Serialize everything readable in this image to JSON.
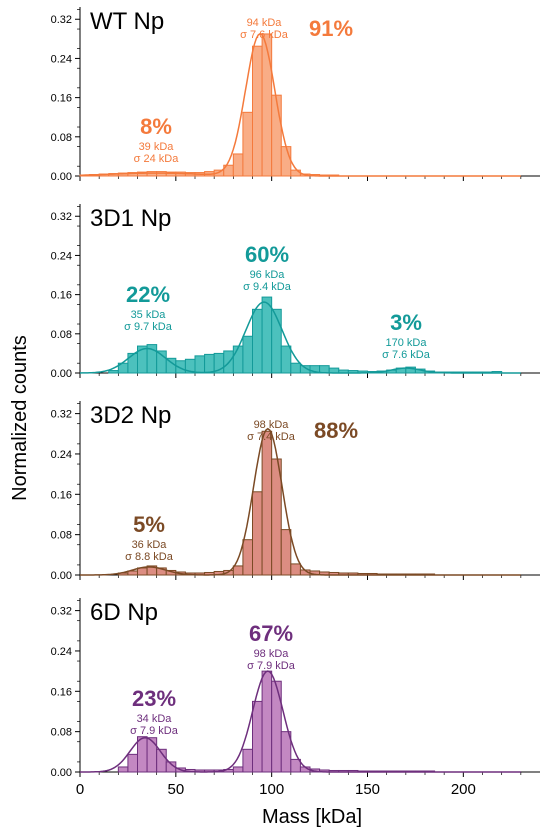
{
  "figure": {
    "ylabel": "Normalized counts",
    "xlabel": "Mass [kDa]"
  },
  "chart_data": [
    {
      "type": "bar",
      "title": "WT Np",
      "color": "#f47a3c",
      "fill": "#f9ad86",
      "xlim": [
        0,
        240
      ],
      "ylim": [
        0,
        0.345
      ],
      "yticks": [
        "0.00",
        "0.08",
        "0.16",
        "0.24",
        "0.32"
      ],
      "bin_width": 5,
      "bins": [
        [
          0,
          0.002
        ],
        [
          5,
          0.003
        ],
        [
          10,
          0.004
        ],
        [
          15,
          0.005
        ],
        [
          20,
          0.006
        ],
        [
          25,
          0.007
        ],
        [
          30,
          0.008
        ],
        [
          35,
          0.009
        ],
        [
          40,
          0.009
        ],
        [
          45,
          0.008
        ],
        [
          50,
          0.008
        ],
        [
          55,
          0.007
        ],
        [
          60,
          0.007
        ],
        [
          65,
          0.009
        ],
        [
          70,
          0.012
        ],
        [
          75,
          0.022
        ],
        [
          80,
          0.045
        ],
        [
          85,
          0.13
        ],
        [
          90,
          0.265
        ],
        [
          95,
          0.29
        ],
        [
          100,
          0.165
        ],
        [
          105,
          0.06
        ],
        [
          110,
          0.012
        ],
        [
          115,
          0.004
        ],
        [
          120,
          0.003
        ],
        [
          125,
          0.002
        ],
        [
          130,
          0.002
        ]
      ],
      "peaks": [
        {
          "percent": "8%",
          "mass": "39 kDa",
          "sigma": "σ 24 kDa",
          "mu": 39,
          "sd": 24,
          "amp": 0.006
        },
        {
          "percent": "91%",
          "mass": "94 kDa",
          "sigma": "σ 7.6 kDa",
          "mu": 94,
          "sd": 7.6,
          "amp": 0.29
        }
      ]
    },
    {
      "type": "bar",
      "title": "3D1 Np",
      "color": "#139a99",
      "fill": "#4cc1bd",
      "xlim": [
        0,
        240
      ],
      "ylim": [
        0,
        0.345
      ],
      "yticks": [
        "0.00",
        "0.08",
        "0.16",
        "0.24",
        "0.32"
      ],
      "bin_width": 5,
      "bins": [
        [
          15,
          0.005
        ],
        [
          20,
          0.02
        ],
        [
          25,
          0.04
        ],
        [
          30,
          0.055
        ],
        [
          35,
          0.058
        ],
        [
          40,
          0.045
        ],
        [
          45,
          0.03
        ],
        [
          50,
          0.025
        ],
        [
          55,
          0.028
        ],
        [
          60,
          0.035
        ],
        [
          65,
          0.038
        ],
        [
          70,
          0.04
        ],
        [
          75,
          0.045
        ],
        [
          80,
          0.055
        ],
        [
          85,
          0.075
        ],
        [
          90,
          0.13
        ],
        [
          95,
          0.155
        ],
        [
          100,
          0.13
        ],
        [
          105,
          0.055
        ],
        [
          110,
          0.02
        ],
        [
          115,
          0.015
        ],
        [
          120,
          0.015
        ],
        [
          125,
          0.015
        ],
        [
          130,
          0.01
        ],
        [
          135,
          0.006
        ],
        [
          140,
          0.005
        ],
        [
          145,
          0.004
        ],
        [
          150,
          0.003
        ],
        [
          155,
          0.004
        ],
        [
          160,
          0.006
        ],
        [
          165,
          0.01
        ],
        [
          170,
          0.012
        ],
        [
          175,
          0.008
        ],
        [
          180,
          0.004
        ],
        [
          185,
          0.002
        ],
        [
          190,
          0.002
        ],
        [
          195,
          0.002
        ],
        [
          200,
          0.002
        ],
        [
          205,
          0.002
        ],
        [
          210,
          0.002
        ],
        [
          215,
          0.003
        ]
      ],
      "peaks": [
        {
          "percent": "22%",
          "mass": "35 kDa",
          "sigma": "σ 9.7 kDa",
          "mu": 35,
          "sd": 9.7,
          "amp": 0.05
        },
        {
          "percent": "60%",
          "mass": "96 kDa",
          "sigma": "σ 9.4 kDa",
          "mu": 96,
          "sd": 9.4,
          "amp": 0.145
        },
        {
          "percent": "3%",
          "mass": "170 kDa",
          "sigma": "σ 7.6 kDa",
          "mu": 170,
          "sd": 7.6,
          "amp": 0.01
        }
      ]
    },
    {
      "type": "bar",
      "title": "3D2 Np",
      "color": "#7b4a25",
      "fill": "#dc8d82",
      "xlim": [
        0,
        240
      ],
      "ylim": [
        0,
        0.345
      ],
      "yticks": [
        "0.00",
        "0.08",
        "0.16",
        "0.24",
        "0.32"
      ],
      "bin_width": 5,
      "bins": [
        [
          20,
          0.004
        ],
        [
          25,
          0.008
        ],
        [
          30,
          0.014
        ],
        [
          35,
          0.018
        ],
        [
          40,
          0.014
        ],
        [
          45,
          0.009
        ],
        [
          50,
          0.006
        ],
        [
          55,
          0.004
        ],
        [
          60,
          0.004
        ],
        [
          65,
          0.005
        ],
        [
          70,
          0.007
        ],
        [
          75,
          0.009
        ],
        [
          80,
          0.018
        ],
        [
          85,
          0.07
        ],
        [
          90,
          0.165
        ],
        [
          95,
          0.285
        ],
        [
          100,
          0.23
        ],
        [
          105,
          0.09
        ],
        [
          110,
          0.022
        ],
        [
          115,
          0.01
        ],
        [
          120,
          0.008
        ],
        [
          125,
          0.006
        ],
        [
          130,
          0.005
        ],
        [
          135,
          0.004
        ],
        [
          140,
          0.004
        ],
        [
          145,
          0.003
        ],
        [
          150,
          0.003
        ],
        [
          155,
          0.002
        ],
        [
          160,
          0.002
        ],
        [
          165,
          0.002
        ],
        [
          170,
          0.002
        ],
        [
          175,
          0.002
        ],
        [
          180,
          0.002
        ]
      ],
      "peaks": [
        {
          "percent": "5%",
          "mass": "36 kDa",
          "sigma": "σ 8.8 kDa",
          "mu": 36,
          "sd": 8.8,
          "amp": 0.016
        },
        {
          "percent": "88%",
          "mass": "98 kDa",
          "sigma": "σ 7.4 kDa",
          "mu": 98,
          "sd": 7.4,
          "amp": 0.29
        }
      ]
    },
    {
      "type": "bar",
      "title": "6D Np",
      "color": "#6e2f7d",
      "fill": "#c388c2",
      "xlim": [
        0,
        240
      ],
      "ylim": [
        0,
        0.345
      ],
      "yticks": [
        "0.00",
        "0.08",
        "0.16",
        "0.24",
        "0.32"
      ],
      "bin_width": 5,
      "bins": [
        [
          20,
          0.01
        ],
        [
          25,
          0.035
        ],
        [
          30,
          0.07
        ],
        [
          35,
          0.068
        ],
        [
          40,
          0.045
        ],
        [
          45,
          0.02
        ],
        [
          50,
          0.008
        ],
        [
          55,
          0.005
        ],
        [
          60,
          0.004
        ],
        [
          65,
          0.004
        ],
        [
          70,
          0.004
        ],
        [
          75,
          0.005
        ],
        [
          80,
          0.01
        ],
        [
          85,
          0.045
        ],
        [
          90,
          0.14
        ],
        [
          95,
          0.2
        ],
        [
          100,
          0.18
        ],
        [
          105,
          0.08
        ],
        [
          110,
          0.025
        ],
        [
          115,
          0.01
        ],
        [
          120,
          0.006
        ],
        [
          125,
          0.004
        ],
        [
          130,
          0.003
        ],
        [
          135,
          0.003
        ],
        [
          140,
          0.003
        ],
        [
          145,
          0.002
        ],
        [
          150,
          0.002
        ],
        [
          155,
          0.002
        ],
        [
          160,
          0.002
        ],
        [
          165,
          0.002
        ],
        [
          170,
          0.002
        ],
        [
          175,
          0.002
        ],
        [
          180,
          0.002
        ]
      ],
      "peaks": [
        {
          "percent": "23%",
          "mass": "34 kDa",
          "sigma": "σ 7.9 kDa",
          "mu": 34,
          "sd": 7.9,
          "amp": 0.068
        },
        {
          "percent": "67%",
          "mass": "98 kDa",
          "sigma": "σ 7.9 kDa",
          "mu": 98,
          "sd": 7.9,
          "amp": 0.2
        }
      ]
    }
  ],
  "xaxis": {
    "ticks": [
      0,
      50,
      100,
      150,
      200
    ],
    "tick_labels": [
      "0",
      "50",
      "100",
      "150",
      "200"
    ]
  }
}
